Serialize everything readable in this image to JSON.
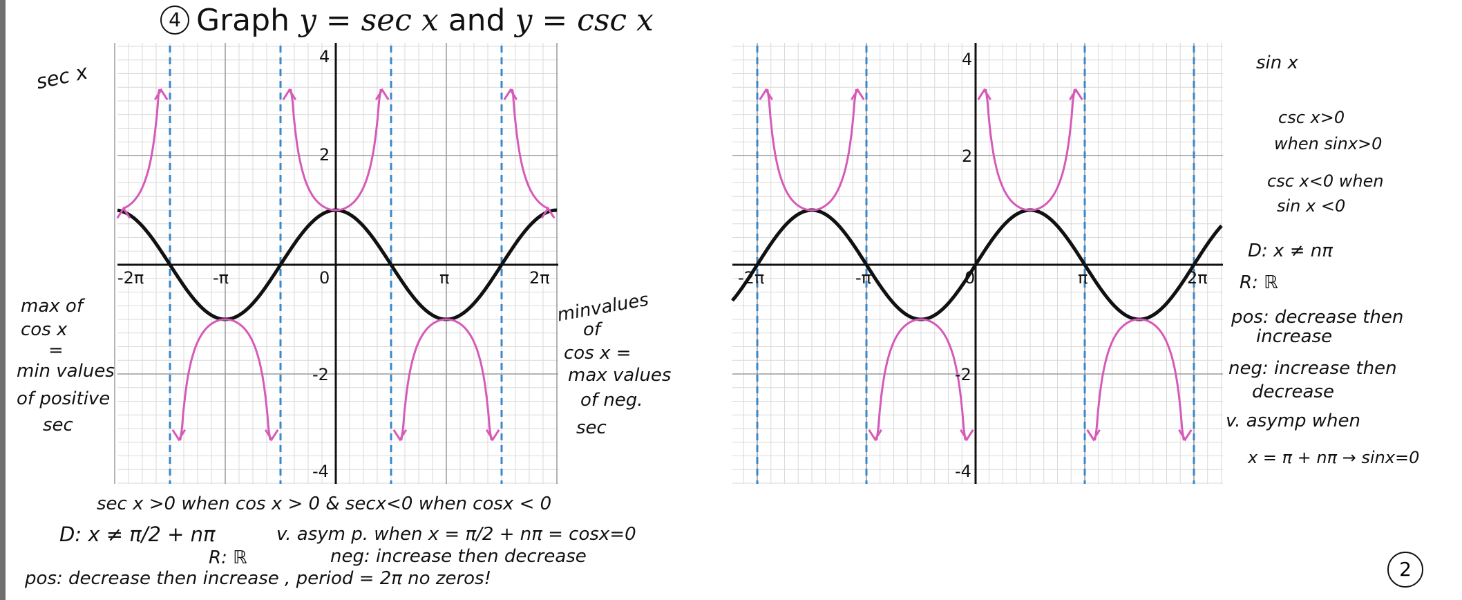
{
  "title": {
    "number": "4",
    "prefix": "Graph ",
    "eq1": "y = sec x",
    "conj": " and ",
    "eq2": "y = csc x"
  },
  "colors": {
    "pink": "#d65ab8",
    "asymptote": "#3a87c9",
    "curve": "#111111",
    "grid": "#b9b9b9"
  },
  "left_graph": {
    "ticks": {
      "y_top": "4",
      "y_2": "2",
      "y_m2": "-2",
      "y_m4": "-4",
      "x_m2pi": "-2π",
      "x_mpi": "-π",
      "x_0": "0",
      "x_pi": "π",
      "x_2pi": "2π"
    },
    "notes": {
      "sec_label": "sec x",
      "max_of": "max of",
      "cosx": "cos x",
      "eq": "=",
      "min_values": "min values",
      "of_positive": "of positive",
      "sec": "sec",
      "minvalues": "minvalues",
      "of": "of",
      "cosx_eq": "cos x =",
      "max_values": "max values",
      "of_neg": "of neg.",
      "secc": "sec"
    }
  },
  "right_graph": {
    "ticks": {
      "y_top": "4",
      "y_2": "2",
      "y_m2": "-2",
      "y_m4": "-4",
      "x_m2pi": "-2π",
      "x_mpi": "-π",
      "x_0": "0",
      "x_pi": "π",
      "x_2pi": "2π"
    },
    "notes": {
      "sinx": "sin x",
      "csc_pos1": "csc x>0",
      "csc_pos2": "when sinx>0",
      "csc_neg1": "csc x<0  when",
      "csc_neg2": "sin x <0",
      "domain": "D: x ≠ nπ",
      "range": "R: ℝ",
      "pos1": "pos: decrease then",
      "pos2": "increase",
      "neg1": "neg: increase then",
      "neg2": "decrease",
      "vasym1": "v. asymp when",
      "vasym2": "x = π + nπ → sinx=0"
    }
  },
  "bottom_notes": {
    "line1": "sec x >0  when   cos x > 0  &  secx<0 when  cosx < 0",
    "domain": "D:  x ≠  π/2 + nπ",
    "vasym": "v. asym p.  when  x = π/2 + nπ = cosx=0",
    "range": "R: ℝ",
    "neg": "neg: increase  then decrease",
    "pos": "pos:  decrease  then  increase ,  period = 2π     no zeros!"
  },
  "page_number": "2"
}
